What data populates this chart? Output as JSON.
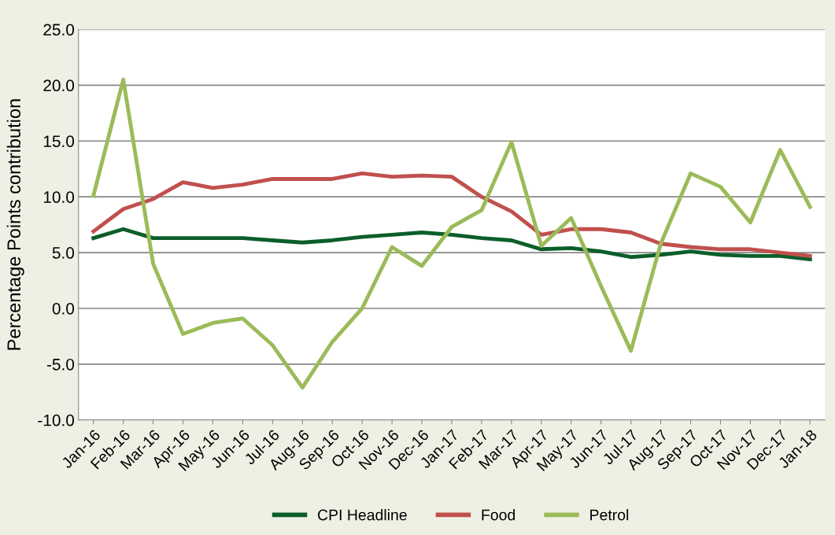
{
  "chart_data": {
    "type": "line",
    "ylabel": "Percentage Points contribution",
    "categories": [
      "Jan-16",
      "Feb-16",
      "Mar-16",
      "Apr-16",
      "May-16",
      "Jun-16",
      "Jul-16",
      "Aug-16",
      "Sep-16",
      "Oct-16",
      "Nov-16",
      "Dec-16",
      "Jan-17",
      "Feb-17",
      "Mar-17",
      "Apr-17",
      "May-17",
      "Jun-17",
      "Jul-17",
      "Aug-17",
      "Sep-17",
      "Oct-17",
      "Nov-17",
      "Dec-17",
      "Jan-18"
    ],
    "series": [
      {
        "name": "CPI Headline",
        "color": "#0b5e2a",
        "values": [
          6.3,
          7.1,
          6.3,
          6.3,
          6.3,
          6.3,
          6.1,
          5.9,
          6.1,
          6.4,
          6.6,
          6.8,
          6.6,
          6.3,
          6.1,
          5.3,
          5.4,
          5.1,
          4.6,
          4.8,
          5.1,
          4.8,
          4.7,
          4.7,
          4.4
        ]
      },
      {
        "name": "Food",
        "color": "#c0504d",
        "values": [
          6.9,
          8.9,
          9.8,
          11.3,
          10.8,
          11.1,
          11.6,
          11.6,
          11.6,
          12.1,
          11.8,
          11.9,
          11.8,
          10.0,
          8.7,
          6.6,
          7.1,
          7.1,
          6.8,
          5.8,
          5.5,
          5.3,
          5.3,
          5.0,
          4.7
        ]
      },
      {
        "name": "Petrol",
        "color": "#9bbb59",
        "values": [
          10.1,
          20.5,
          4.0,
          -2.3,
          -1.3,
          -0.9,
          -3.3,
          -7.1,
          -3.0,
          0.0,
          5.5,
          3.8,
          7.3,
          8.8,
          14.9,
          5.6,
          8.1,
          2.0,
          -3.8,
          5.8,
          12.1,
          10.9,
          7.7,
          14.2,
          9.1
        ]
      }
    ],
    "ylim": [
      -10,
      25
    ],
    "yticks": [
      {
        "value": -10,
        "label": "-10.0"
      },
      {
        "value": -5,
        "label": "-5.0"
      },
      {
        "value": 0,
        "label": "0.0"
      },
      {
        "value": 5,
        "label": "5.0"
      },
      {
        "value": 10,
        "label": "10.0"
      },
      {
        "value": 15,
        "label": "15.0"
      },
      {
        "value": 20,
        "label": "20.0"
      },
      {
        "value": 25,
        "label": "25.0"
      }
    ],
    "grid": "y",
    "legend": "bottom",
    "marker": "none",
    "line_style": "solid"
  }
}
